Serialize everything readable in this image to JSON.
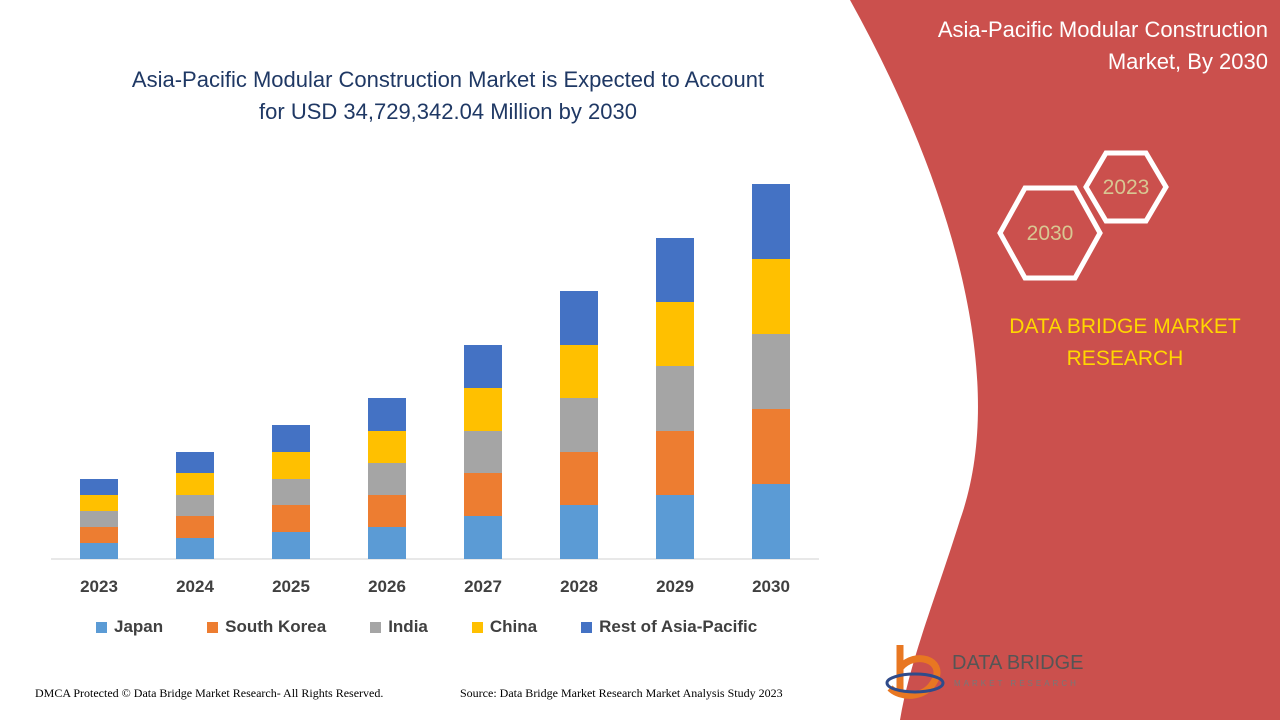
{
  "chart_data": {
    "type": "stacked_bar",
    "title": "Asia-Pacific Modular Construction Market is Expected to Account for USD 34,729,342.04 Million by 2030",
    "categories": [
      "2023",
      "2024",
      "2025",
      "2026",
      "2027",
      "2028",
      "2029",
      "2030"
    ],
    "series": [
      {
        "name": "Japan",
        "color": "#5b9bd5",
        "values": [
          16,
          21,
          27,
          32,
          43,
          54,
          64,
          75
        ]
      },
      {
        "name": "South Korea",
        "color": "#ed7d31",
        "values": [
          16,
          22,
          27,
          32,
          43,
          53,
          64,
          75
        ]
      },
      {
        "name": "India",
        "color": "#a5a5a5",
        "values": [
          16,
          21,
          26,
          32,
          42,
          54,
          65,
          75
        ]
      },
      {
        "name": "China",
        "color": "#ffc000",
        "values": [
          16,
          22,
          27,
          32,
          43,
          53,
          64,
          75
        ]
      },
      {
        "name": "Rest of Asia-Pacific",
        "color": "#4472c4",
        "values": [
          16,
          21,
          27,
          33,
          43,
          54,
          64,
          75
        ]
      }
    ],
    "ylim": [
      0,
      400
    ]
  },
  "panel": {
    "title": "Asia-Pacific Modular Construction Market, By 2030",
    "badges": [
      "2023",
      "2030"
    ],
    "brand": "DATA BRIDGE MARKET RESEARCH"
  },
  "logo": {
    "name": "DATA BRIDGE",
    "tagline": "MARKET RESEARCH"
  },
  "footer": {
    "copyright": "DMCA Protected © Data Bridge Market Research- All Rights Reserved.",
    "source": "Source: Data Bridge Market Research Market Analysis Study 2023"
  }
}
